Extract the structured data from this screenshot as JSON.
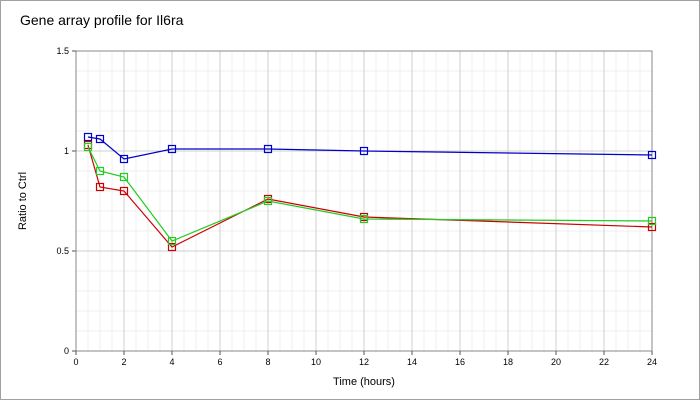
{
  "chart_data": {
    "type": "line",
    "title": "Gene array profile for Il6ra",
    "xlabel": "Time (hours)",
    "ylabel": "Ratio to Ctrl",
    "xlim": [
      0,
      24
    ],
    "ylim": [
      0,
      1.5
    ],
    "x_ticks": [
      0,
      2,
      4,
      6,
      8,
      10,
      12,
      14,
      16,
      18,
      20,
      22,
      24
    ],
    "y_ticks": [
      0,
      0.5,
      1,
      1.5
    ],
    "y_tick_labels": [
      "0",
      "0.5",
      "1",
      "1.5"
    ],
    "grid": true,
    "marker": "square",
    "series": [
      {
        "color": "#0000cc",
        "x": [
          0.5,
          1,
          2,
          4,
          8,
          12,
          24
        ],
        "values": [
          1.07,
          1.06,
          0.96,
          1.01,
          1.01,
          1.0,
          0.98
        ]
      },
      {
        "color": "#cc0000",
        "x": [
          0.5,
          1,
          2,
          4,
          8,
          12,
          24
        ],
        "values": [
          1.03,
          0.82,
          0.8,
          0.52,
          0.76,
          0.67,
          0.62
        ]
      },
      {
        "color": "#22cc22",
        "x": [
          0.5,
          1,
          2,
          4,
          8,
          12,
          24
        ],
        "values": [
          1.02,
          0.9,
          0.87,
          0.55,
          0.75,
          0.66,
          0.65
        ]
      }
    ]
  }
}
